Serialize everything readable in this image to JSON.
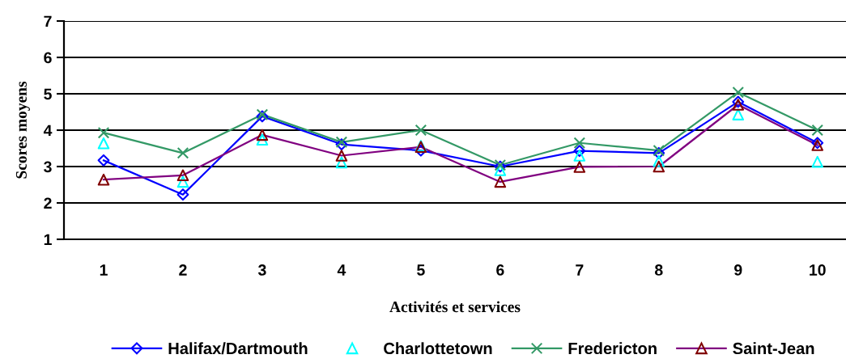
{
  "chart_data": {
    "type": "line",
    "xlabel": "Activités et services",
    "ylabel": "Scores moyens",
    "categories": [
      "1",
      "2",
      "3",
      "4",
      "5",
      "6",
      "7",
      "8",
      "9",
      "10"
    ],
    "ylim": [
      1,
      7
    ],
    "yticks": [
      1,
      2,
      3,
      4,
      5,
      6,
      7
    ],
    "grid": "y",
    "legend": "bottom",
    "series": [
      {
        "name": "Halifax/Dartmouth",
        "color": "#0000ff",
        "marker": "diamond",
        "values": [
          3.17,
          2.23,
          4.38,
          3.61,
          3.44,
          3.0,
          3.43,
          3.37,
          4.78,
          3.65
        ]
      },
      {
        "name": "Charlottetown",
        "type": "scatter",
        "color": "#00ffff",
        "marker": "triangle",
        "values": [
          3.64,
          2.58,
          3.74,
          3.11,
          3.57,
          2.9,
          3.3,
          3.15,
          4.43,
          3.13
        ]
      },
      {
        "name": "Fredericton",
        "color": "#339966",
        "marker": "cross",
        "values": [
          3.93,
          3.37,
          4.43,
          3.67,
          4.0,
          3.04,
          3.65,
          3.44,
          5.04,
          4.0
        ]
      },
      {
        "name": "Saint-Jean",
        "color": "#800080",
        "colors": [
          "#800000",
          "#800000",
          "#800000",
          "#800000",
          "#800000",
          "#800000",
          "#800000",
          "#800000",
          "#800000",
          "#800000"
        ],
        "marker": "triangle",
        "values": [
          2.64,
          2.76,
          3.87,
          3.3,
          3.54,
          2.58,
          2.99,
          3.0,
          4.7,
          3.59
        ]
      }
    ]
  }
}
